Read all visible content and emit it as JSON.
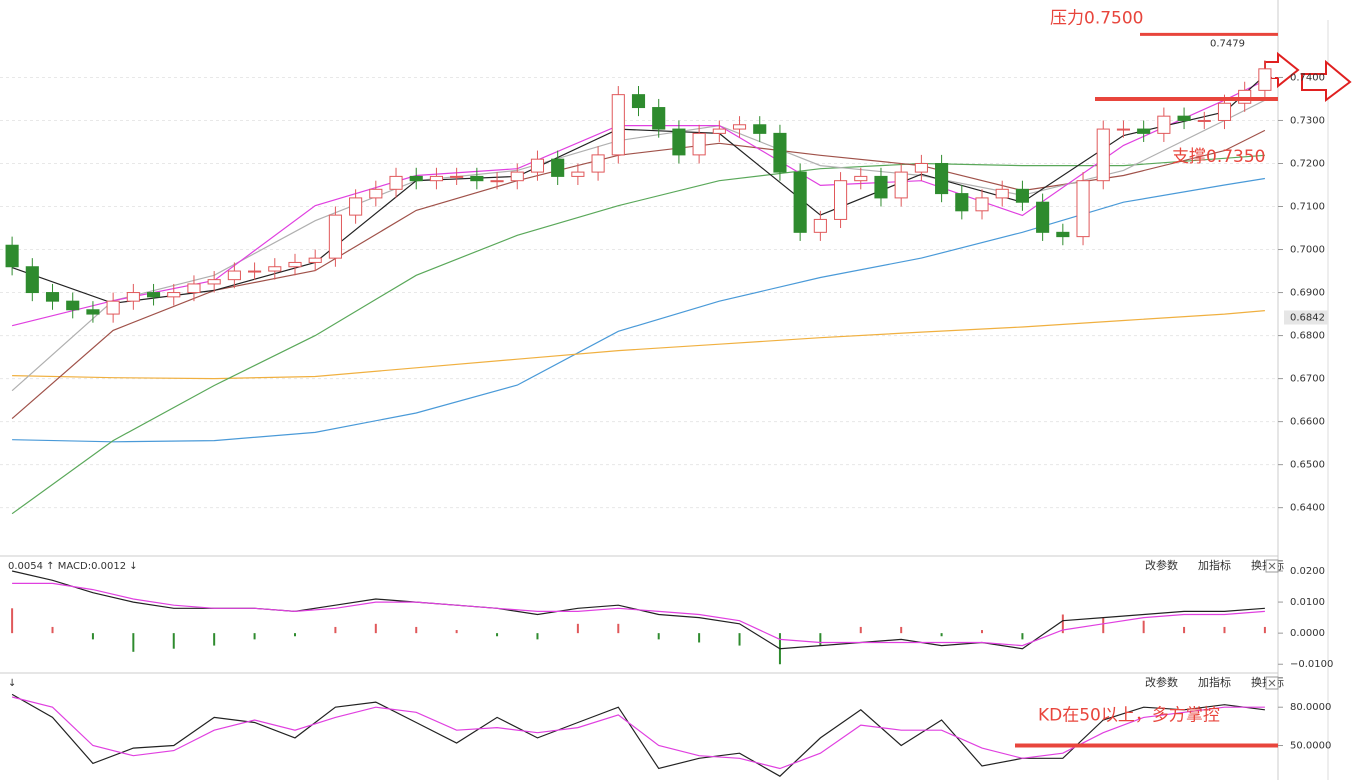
{
  "chart_data": [
    {
      "type": "candlestick",
      "up_color": "#e0585a",
      "down_color": "#2e8b2e",
      "grid": true,
      "open": [
        0.701,
        0.696,
        0.69,
        0.688,
        0.686,
        0.685,
        0.688,
        0.69,
        0.689,
        0.69,
        0.692,
        0.693,
        0.695,
        0.695,
        0.696,
        0.697,
        0.698,
        0.708,
        0.712,
        0.714,
        0.717,
        0.716,
        0.717,
        0.717,
        0.716,
        0.716,
        0.718,
        0.721,
        0.717,
        0.718,
        0.722,
        0.736,
        0.733,
        0.728,
        0.722,
        0.727,
        0.728,
        0.729,
        0.727,
        0.718,
        0.704,
        0.707,
        0.716,
        0.717,
        0.712,
        0.718,
        0.72,
        0.713,
        0.709,
        0.712,
        0.714,
        0.711,
        0.704,
        0.703,
        0.716,
        0.728,
        0.728,
        0.727,
        0.731,
        0.73,
        0.73,
        0.734,
        0.737
      ],
      "high": [
        0.703,
        0.698,
        0.692,
        0.69,
        0.688,
        0.69,
        0.692,
        0.692,
        0.692,
        0.694,
        0.695,
        0.697,
        0.697,
        0.698,
        0.699,
        0.7,
        0.71,
        0.714,
        0.716,
        0.719,
        0.719,
        0.719,
        0.719,
        0.719,
        0.718,
        0.72,
        0.723,
        0.723,
        0.72,
        0.724,
        0.738,
        0.738,
        0.735,
        0.73,
        0.729,
        0.73,
        0.731,
        0.731,
        0.729,
        0.72,
        0.709,
        0.718,
        0.719,
        0.719,
        0.72,
        0.722,
        0.722,
        0.715,
        0.714,
        0.716,
        0.716,
        0.713,
        0.706,
        0.718,
        0.73,
        0.73,
        0.73,
        0.733,
        0.733,
        0.732,
        0.736,
        0.739,
        0.744
      ],
      "low": [
        0.694,
        0.688,
        0.686,
        0.684,
        0.683,
        0.683,
        0.686,
        0.687,
        0.687,
        0.688,
        0.69,
        0.691,
        0.693,
        0.693,
        0.694,
        0.695,
        0.696,
        0.706,
        0.71,
        0.712,
        0.714,
        0.714,
        0.715,
        0.714,
        0.714,
        0.714,
        0.716,
        0.715,
        0.715,
        0.716,
        0.72,
        0.731,
        0.726,
        0.72,
        0.72,
        0.725,
        0.726,
        0.725,
        0.716,
        0.702,
        0.702,
        0.705,
        0.714,
        0.71,
        0.71,
        0.716,
        0.711,
        0.707,
        0.707,
        0.71,
        0.709,
        0.702,
        0.701,
        0.701,
        0.714,
        0.726,
        0.725,
        0.725,
        0.728,
        0.728,
        0.728,
        0.732,
        0.735
      ],
      "close": [
        0.696,
        0.69,
        0.688,
        0.686,
        0.685,
        0.688,
        0.69,
        0.689,
        0.69,
        0.692,
        0.693,
        0.695,
        0.695,
        0.696,
        0.697,
        0.698,
        0.708,
        0.712,
        0.714,
        0.717,
        0.716,
        0.717,
        0.717,
        0.716,
        0.716,
        0.718,
        0.721,
        0.717,
        0.718,
        0.722,
        0.736,
        0.733,
        0.728,
        0.722,
        0.727,
        0.728,
        0.729,
        0.727,
        0.718,
        0.704,
        0.707,
        0.716,
        0.717,
        0.712,
        0.718,
        0.72,
        0.713,
        0.709,
        0.712,
        0.714,
        0.711,
        0.704,
        0.703,
        0.716,
        0.728,
        0.728,
        0.727,
        0.731,
        0.73,
        0.73,
        0.734,
        0.737,
        0.742
      ],
      "ylim": [
        0.629,
        0.758
      ],
      "yticks": [
        {
          "value": 0.64,
          "label": "0.6400"
        },
        {
          "value": 0.65,
          "label": "0.6500"
        },
        {
          "value": 0.66,
          "label": "0.6600"
        },
        {
          "value": 0.67,
          "label": "0.6700"
        },
        {
          "value": 0.68,
          "label": "0.6800"
        },
        {
          "value": 0.69,
          "label": "0.6900"
        },
        {
          "value": 0.7,
          "label": "0.7000"
        },
        {
          "value": 0.71,
          "label": "0.7100"
        },
        {
          "value": 0.72,
          "label": "0.7200"
        },
        {
          "value": 0.73,
          "label": "0.7300"
        },
        {
          "value": 0.74,
          "label": "0.7400"
        }
      ],
      "series": [
        {
          "color": "#4a9ad8",
          "x": [
            0,
            5,
            10,
            15,
            20,
            25,
            30,
            35,
            40,
            45,
            50,
            55,
            60,
            62
          ],
          "values": [
            0.6558,
            0.6553,
            0.6556,
            0.6575,
            0.662,
            0.6685,
            0.681,
            0.688,
            0.6935,
            0.698,
            0.704,
            0.711,
            0.715,
            0.7165
          ]
        },
        {
          "color": "#f0b040",
          "x": [
            0,
            5,
            10,
            15,
            20,
            25,
            30,
            35,
            40,
            45,
            50,
            55,
            60,
            62
          ],
          "values": [
            0.6707,
            0.6702,
            0.67,
            0.6705,
            0.6725,
            0.6745,
            0.6765,
            0.678,
            0.6795,
            0.6808,
            0.682,
            0.6835,
            0.685,
            0.6858
          ]
        },
        {
          "color": "#5aa85a",
          "x": [
            0,
            5,
            10,
            15,
            20,
            25,
            30,
            35,
            40,
            45,
            50,
            55,
            60,
            62
          ],
          "values": [
            0.6386,
            0.6556,
            0.6684,
            0.68,
            0.694,
            0.7033,
            0.7102,
            0.716,
            0.7188,
            0.72,
            0.7195,
            0.7195,
            0.7212,
            0.7219
          ]
        },
        {
          "color": "#a0524a",
          "x": [
            0,
            5,
            10,
            15,
            20,
            25,
            30,
            35,
            40,
            45,
            50,
            55,
            60,
            62
          ],
          "values": [
            0.6607,
            0.6812,
            0.6905,
            0.6951,
            0.7091,
            0.716,
            0.7219,
            0.7247,
            0.7219,
            0.7195,
            0.7137,
            0.7172,
            0.723,
            0.7277
          ]
        },
        {
          "color": "#b0b0b0",
          "x": [
            0,
            5,
            10,
            15,
            20,
            25,
            30,
            35,
            40,
            45,
            50,
            55,
            60,
            62
          ],
          "values": [
            0.6672,
            0.6881,
            0.694,
            0.7067,
            0.716,
            0.7184,
            0.7253,
            0.7288,
            0.7195,
            0.7172,
            0.7126,
            0.7184,
            0.73,
            0.7347
          ]
        },
        {
          "color": "#e040e0",
          "x": [
            0,
            5,
            10,
            15,
            20,
            25,
            30,
            35,
            40,
            45,
            50,
            55,
            60,
            62
          ],
          "values": [
            0.6823,
            0.6881,
            0.6928,
            0.7102,
            0.7172,
            0.7188,
            0.7288,
            0.7288,
            0.7149,
            0.716,
            0.7079,
            0.7242,
            0.7347,
            0.7393
          ]
        },
        {
          "color": "#222222",
          "x": [
            0,
            5,
            10,
            15,
            20,
            25,
            30,
            35,
            40,
            45,
            50,
            55,
            60,
            62
          ],
          "values": [
            0.6958,
            0.6875,
            0.6905,
            0.697,
            0.716,
            0.717,
            0.728,
            0.727,
            0.708,
            0.7175,
            0.711,
            0.7265,
            0.732,
            0.7405
          ]
        }
      ],
      "annotations": [
        {
          "text": "压力0.7500",
          "value": 0.75
        },
        {
          "text": "支撑0.7350",
          "value": 0.735
        }
      ],
      "axis_tag": {
        "value": 0.6842,
        "label": "0.6842"
      },
      "last_price": {
        "value": 0.7479,
        "label": "0.7479"
      }
    },
    {
      "type": "macd",
      "header": "0.0054 ↑ MACD:0.0012 ↓",
      "buttons": [
        "改参数",
        "加指标",
        "换指标"
      ],
      "ylim": [
        -0.0125,
        0.0245
      ],
      "yticks": [
        {
          "value": 0.02,
          "label": "0.0200"
        },
        {
          "value": 0.01,
          "label": "0.0100"
        },
        {
          "value": 0,
          "label": "0.0000"
        },
        {
          "value": -0.01,
          "label": "−0.0100"
        }
      ],
      "x": [
        0,
        2,
        4,
        6,
        8,
        10,
        12,
        14,
        16,
        18,
        20,
        22,
        24,
        26,
        28,
        30,
        32,
        34,
        36,
        38,
        40,
        42,
        44,
        46,
        48,
        50,
        52,
        54,
        56,
        58,
        60,
        62
      ],
      "series": [
        {
          "color": "#222222",
          "values": [
            0.02,
            0.017,
            0.013,
            0.01,
            0.008,
            0.008,
            0.008,
            0.007,
            0.009,
            0.011,
            0.01,
            0.009,
            0.008,
            0.006,
            0.008,
            0.009,
            0.006,
            0.005,
            0.003,
            -0.005,
            -0.004,
            -0.003,
            -0.002,
            -0.004,
            -0.003,
            -0.005,
            0.004,
            0.005,
            0.006,
            0.007,
            0.007,
            0.008
          ]
        },
        {
          "color": "#e040e0",
          "values": [
            0.016,
            0.016,
            0.014,
            0.011,
            0.009,
            0.008,
            0.008,
            0.007,
            0.008,
            0.01,
            0.01,
            0.009,
            0.008,
            0.007,
            0.007,
            0.008,
            0.007,
            0.006,
            0.004,
            -0.002,
            -0.003,
            -0.003,
            -0.003,
            -0.003,
            -0.003,
            -0.004,
            0.001,
            0.003,
            0.005,
            0.006,
            0.006,
            0.007
          ]
        }
      ],
      "histogram": [
        0.008,
        0.002,
        -0.002,
        -0.006,
        -0.005,
        -0.004,
        -0.002,
        -0.001,
        0.002,
        0.003,
        0.002,
        0.001,
        -0.001,
        -0.002,
        0.003,
        0.003,
        -0.002,
        -0.003,
        -0.004,
        -0.01,
        -0.004,
        0.002,
        0.002,
        -0.001,
        0.001,
        -0.002,
        0.006,
        0.005,
        0.004,
        0.002,
        0.002,
        0.002
      ],
      "up_color": "#e0585a",
      "down_color": "#2e8b2e"
    },
    {
      "type": "kd",
      "header": "↓",
      "buttons": [
        "改参数",
        "加指标",
        "换指标"
      ],
      "ylim": [
        23,
        106
      ],
      "yticks": [
        {
          "value": 80,
          "label": "80.0000"
        },
        {
          "value": 50,
          "label": "50.0000"
        }
      ],
      "x": [
        0,
        2,
        4,
        6,
        8,
        10,
        12,
        14,
        16,
        18,
        20,
        22,
        24,
        26,
        28,
        30,
        32,
        34,
        36,
        38,
        40,
        42,
        44,
        46,
        48,
        50,
        52,
        54,
        56,
        58,
        60,
        62
      ],
      "series": [
        {
          "color": "#222222",
          "values": [
            90,
            72,
            36,
            48,
            50,
            72,
            68,
            56,
            80,
            84,
            68,
            52,
            72,
            56,
            68,
            80,
            32,
            40,
            44,
            26,
            56,
            78,
            50,
            70,
            34,
            40,
            40,
            70,
            80,
            78,
            82,
            78
          ]
        },
        {
          "color": "#e040e0",
          "values": [
            88,
            80,
            50,
            42,
            46,
            62,
            70,
            62,
            72,
            80,
            76,
            62,
            64,
            60,
            64,
            74,
            50,
            42,
            40,
            32,
            44,
            66,
            62,
            62,
            48,
            40,
            44,
            60,
            72,
            76,
            80,
            80
          ]
        }
      ],
      "annotation": {
        "text": "KD在50以上，多方掌控",
        "value": 50
      }
    }
  ]
}
